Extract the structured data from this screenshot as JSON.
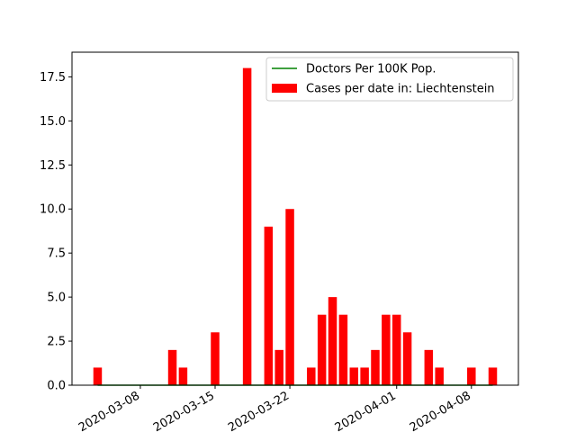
{
  "chart_data": {
    "type": "bar",
    "x_type": "date",
    "dates": [
      "2020-03-04",
      "2020-03-05",
      "2020-03-06",
      "2020-03-07",
      "2020-03-08",
      "2020-03-09",
      "2020-03-10",
      "2020-03-11",
      "2020-03-12",
      "2020-03-13",
      "2020-03-14",
      "2020-03-15",
      "2020-03-16",
      "2020-03-17",
      "2020-03-18",
      "2020-03-19",
      "2020-03-20",
      "2020-03-21",
      "2020-03-22",
      "2020-03-23",
      "2020-03-24",
      "2020-03-25",
      "2020-03-26",
      "2020-03-27",
      "2020-03-28",
      "2020-03-29",
      "2020-03-30",
      "2020-03-31",
      "2020-04-01",
      "2020-04-02",
      "2020-04-03",
      "2020-04-04",
      "2020-04-05",
      "2020-04-06",
      "2020-04-07",
      "2020-04-08",
      "2020-04-09",
      "2020-04-10"
    ],
    "series": [
      {
        "name": "Cases per date in: Liechtenstein",
        "kind": "bar",
        "color": "#ff0000",
        "values": [
          1,
          0,
          0,
          0,
          0,
          0,
          0,
          2,
          1,
          0,
          0,
          3,
          0,
          0,
          18,
          0,
          9,
          2,
          10,
          0,
          1,
          4,
          5,
          4,
          1,
          1,
          2,
          4,
          4,
          3,
          0,
          2,
          1,
          0,
          0,
          1,
          0,
          1
        ]
      },
      {
        "name": "Doctors Per 100K Pop.",
        "kind": "line",
        "color": "#008000",
        "values": [
          0,
          0,
          0,
          0,
          0,
          0,
          0,
          0,
          0,
          0,
          0,
          0,
          0,
          0,
          0,
          0,
          0,
          0,
          0,
          0,
          0,
          0,
          0,
          0,
          0,
          0,
          0,
          0,
          0,
          0,
          0,
          0,
          0,
          0,
          0,
          0,
          0,
          0
        ]
      }
    ],
    "ylim": [
      0,
      18.9
    ],
    "y_ticks": [
      "0.0",
      "2.5",
      "5.0",
      "7.5",
      "10.0",
      "12.5",
      "15.0",
      "17.5"
    ],
    "x_ticks": [
      "2020-03-08",
      "2020-03-15",
      "2020-03-22",
      "2020-04-01",
      "2020-04-08"
    ],
    "x_tick_rotation": 30,
    "legend_position": "upper right",
    "legend_order": [
      "Doctors Per 100K Pop.",
      "Cases per date in: Liechtenstein"
    ],
    "grid": false
  }
}
